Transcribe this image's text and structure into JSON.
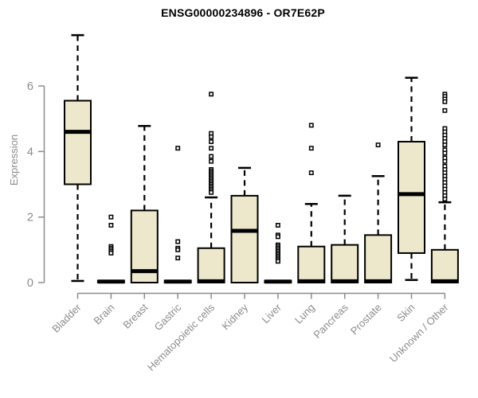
{
  "chart_data": {
    "type": "boxplot",
    "title": "ENSG00000234896 - OR7E62P",
    "ylabel": "Expression",
    "xlabel": "",
    "yticks": [
      0,
      2,
      4,
      6
    ],
    "ylim": [
      0,
      7.8
    ],
    "grid": false,
    "legend": false,
    "colors": {
      "box_fill": "#EDE8CB",
      "box_border": "#000000",
      "median": "#000000",
      "whisker": "#000000",
      "outlier": "#000000",
      "axis": "#8C8C8C",
      "text": "#8C8C8C",
      "title": "#000000",
      "background": "#FFFFFF"
    },
    "categories": [
      "Bladder",
      "Brain",
      "Breast",
      "Gastric",
      "Hematopoietic cells",
      "Kidney",
      "Liver",
      "Lung",
      "Pancreas",
      "Prostate",
      "Skin",
      "Unknown / Other"
    ],
    "series": [
      {
        "category": "Bladder",
        "whisker_low": 0.05,
        "q1": 3.0,
        "median": 4.6,
        "q3": 5.55,
        "whisker_high": 7.55,
        "outliers": []
      },
      {
        "category": "Brain",
        "whisker_low": 0,
        "q1": 0,
        "median": 0.03,
        "q3": 0.06,
        "whisker_high": 0.06,
        "outliers": [
          2.0,
          1.75,
          1.1,
          1.05,
          1.0,
          0.95,
          0.9
        ]
      },
      {
        "category": "Breast",
        "whisker_low": 0,
        "q1": 0,
        "median": 0.35,
        "q3": 2.2,
        "whisker_high": 4.78,
        "outliers": []
      },
      {
        "category": "Gastric",
        "whisker_low": 0,
        "q1": 0,
        "median": 0.03,
        "q3": 0.06,
        "whisker_high": 0.06,
        "outliers": [
          4.1,
          1.25,
          1.05,
          1.0,
          0.75
        ]
      },
      {
        "category": "Hematopoietic cells",
        "whisker_low": 0,
        "q1": 0,
        "median": 0.04,
        "q3": 1.05,
        "whisker_high": 2.6,
        "outliers": [
          5.75,
          4.55,
          4.45,
          4.3,
          4.1,
          3.85,
          3.7,
          3.45,
          3.4,
          3.35,
          3.3,
          3.25,
          3.2,
          3.15,
          3.1,
          3.05,
          3.0,
          2.95,
          2.9,
          2.85,
          2.8,
          2.75
        ]
      },
      {
        "category": "Kidney",
        "whisker_low": 0,
        "q1": 0,
        "median": 1.58,
        "q3": 2.65,
        "whisker_high": 3.5,
        "outliers": []
      },
      {
        "category": "Liver",
        "whisker_low": 0,
        "q1": 0,
        "median": 0.03,
        "q3": 0.06,
        "whisker_high": 0.06,
        "outliers": [
          1.75,
          1.45,
          1.4,
          1.15,
          1.1,
          1.05,
          1.0,
          0.95,
          0.9,
          0.85,
          0.8,
          0.75,
          0.7,
          0.65
        ]
      },
      {
        "category": "Lung",
        "whisker_low": 0,
        "q1": 0,
        "median": 0.04,
        "q3": 1.1,
        "whisker_high": 2.4,
        "outliers": [
          4.8,
          4.1,
          3.35
        ]
      },
      {
        "category": "Pancreas",
        "whisker_low": 0,
        "q1": 0,
        "median": 0.04,
        "q3": 1.15,
        "whisker_high": 2.65,
        "outliers": []
      },
      {
        "category": "Prostate",
        "whisker_low": 0,
        "q1": 0,
        "median": 0.04,
        "q3": 1.45,
        "whisker_high": 3.25,
        "outliers": [
          4.2
        ]
      },
      {
        "category": "Skin",
        "whisker_low": 0.08,
        "q1": 0.9,
        "median": 2.7,
        "q3": 4.3,
        "whisker_high": 6.25,
        "outliers": []
      },
      {
        "category": "Unknown / Other",
        "whisker_low": 0,
        "q1": 0,
        "median": 0.04,
        "q3": 1.0,
        "whisker_high": 2.45,
        "outliers": [
          5.75,
          5.68,
          5.6,
          5.52,
          5.25,
          4.7,
          4.6,
          4.5,
          4.4,
          4.3,
          4.2,
          4.05,
          3.95,
          3.8,
          3.7,
          3.55,
          3.45,
          3.35,
          3.25,
          3.15,
          3.05,
          2.95,
          2.85,
          2.75,
          2.65,
          2.55
        ]
      }
    ]
  }
}
